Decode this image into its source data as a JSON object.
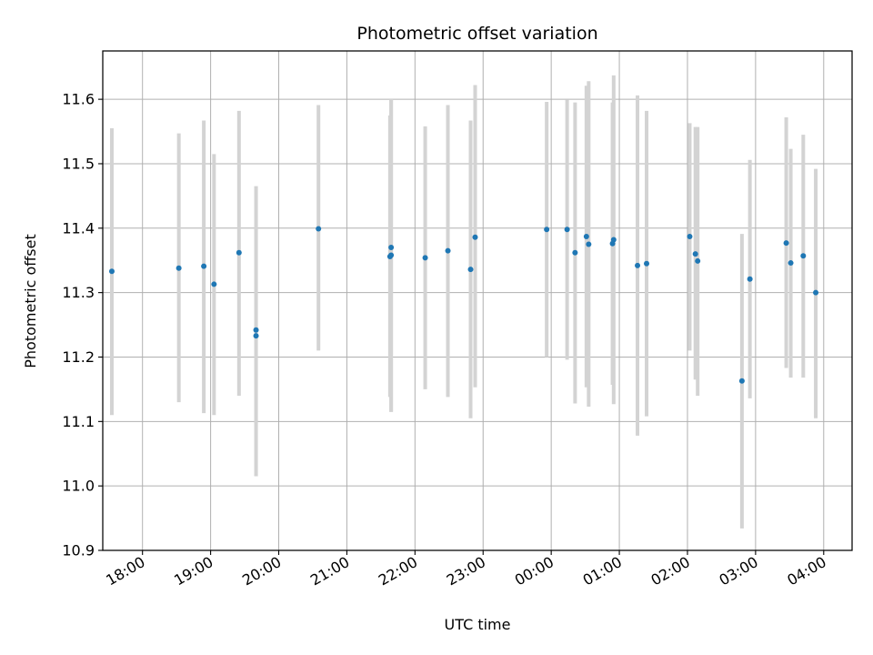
{
  "chart_data": {
    "type": "scatter",
    "title": "Photometric offset variation",
    "xlabel": "UTC time",
    "ylabel": "Photometric offset",
    "grid": true,
    "xlim": [
      "17:25",
      "04:25"
    ],
    "ylim": [
      10.9,
      11.675
    ],
    "x_ticks": [
      "18:00",
      "19:00",
      "20:00",
      "21:00",
      "22:00",
      "23:00",
      "00:00",
      "01:00",
      "02:00",
      "03:00",
      "04:00"
    ],
    "y_ticks": [
      10.9,
      11.0,
      11.1,
      11.2,
      11.3,
      11.4,
      11.5,
      11.6
    ],
    "colors": {
      "points": "#1f77b4",
      "errorbars": "#d3d3d3",
      "grid": "#b0b0b0"
    },
    "points": [
      {
        "time": "17:33",
        "y": 11.333,
        "low": 11.11,
        "high": 11.555
      },
      {
        "time": "18:32",
        "y": 11.338,
        "low": 11.13,
        "high": 11.547
      },
      {
        "time": "18:54",
        "y": 11.341,
        "low": 11.113,
        "high": 11.567
      },
      {
        "time": "19:03",
        "y": 11.313,
        "low": 11.11,
        "high": 11.515
      },
      {
        "time": "19:25",
        "y": 11.362,
        "low": 11.14,
        "high": 11.582
      },
      {
        "time": "19:40",
        "y": 11.242,
        "low": 11.015,
        "high": 11.465
      },
      {
        "time": "19:40",
        "y": 11.233,
        "low": 11.015,
        "high": 11.465
      },
      {
        "time": "20:35",
        "y": 11.399,
        "low": 11.21,
        "high": 11.591
      },
      {
        "time": "21:38",
        "y": 11.356,
        "low": 11.138,
        "high": 11.575
      },
      {
        "time": "21:39",
        "y": 11.37,
        "low": 11.115,
        "high": 11.6
      },
      {
        "time": "21:39",
        "y": 11.358,
        "low": 11.115,
        "high": 11.6
      },
      {
        "time": "22:09",
        "y": 11.354,
        "low": 11.15,
        "high": 11.558
      },
      {
        "time": "22:29",
        "y": 11.365,
        "low": 11.138,
        "high": 11.591
      },
      {
        "time": "22:49",
        "y": 11.336,
        "low": 11.105,
        "high": 11.567
      },
      {
        "time": "22:53",
        "y": 11.386,
        "low": 11.153,
        "high": 11.622
      },
      {
        "time": "23:56",
        "y": 11.398,
        "low": 11.2,
        "high": 11.596
      },
      {
        "time": "00:14",
        "y": 11.398,
        "low": 11.196,
        "high": 11.599
      },
      {
        "time": "00:21",
        "y": 11.362,
        "low": 11.128,
        "high": 11.595
      },
      {
        "time": "00:31",
        "y": 11.387,
        "low": 11.153,
        "high": 11.621
      },
      {
        "time": "00:33",
        "y": 11.375,
        "low": 11.123,
        "high": 11.628
      },
      {
        "time": "00:54",
        "y": 11.376,
        "low": 11.157,
        "high": 11.595
      },
      {
        "time": "00:55",
        "y": 11.382,
        "low": 11.127,
        "high": 11.637
      },
      {
        "time": "01:16",
        "y": 11.342,
        "low": 11.078,
        "high": 11.606
      },
      {
        "time": "01:24",
        "y": 11.345,
        "low": 11.108,
        "high": 11.582
      },
      {
        "time": "02:02",
        "y": 11.387,
        "low": 11.21,
        "high": 11.563
      },
      {
        "time": "02:07",
        "y": 11.36,
        "low": 11.165,
        "high": 11.557
      },
      {
        "time": "02:09",
        "y": 11.349,
        "low": 11.14,
        "high": 11.557
      },
      {
        "time": "02:48",
        "y": 11.163,
        "low": 10.934,
        "high": 11.391
      },
      {
        "time": "02:55",
        "y": 11.321,
        "low": 11.136,
        "high": 11.506
      },
      {
        "time": "03:27",
        "y": 11.377,
        "low": 11.183,
        "high": 11.572
      },
      {
        "time": "03:31",
        "y": 11.346,
        "low": 11.168,
        "high": 11.523
      },
      {
        "time": "03:42",
        "y": 11.357,
        "low": 11.168,
        "high": 11.545
      },
      {
        "time": "03:53",
        "y": 11.3,
        "low": 11.105,
        "high": 11.492
      }
    ]
  }
}
